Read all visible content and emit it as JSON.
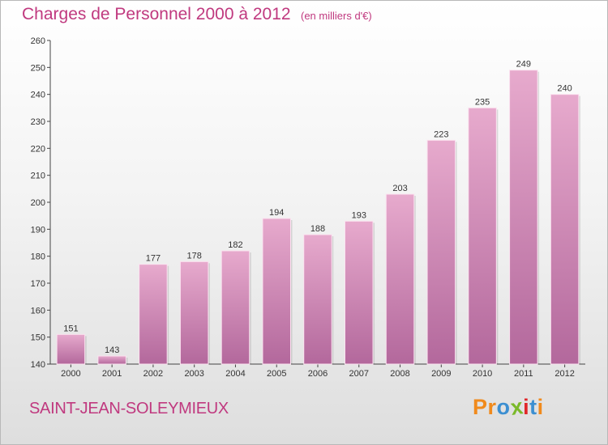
{
  "title": "Charges de Personnel 2000 à 2012",
  "unit": "(en milliers d'€)",
  "commune": "SAINT-JEAN-SOLEYMIEUX",
  "logo": {
    "letters": [
      "P",
      "r",
      "o",
      "x",
      "i",
      "t",
      "i"
    ],
    "colors": [
      "#f08a1c",
      "#f08a1c",
      "#3c8fd1",
      "#7ab929",
      "#e0272a",
      "#3c8fd1",
      "#f08a1c"
    ]
  },
  "colors": {
    "bar_top": "#e7aacd",
    "bar_bottom": "#b3689c",
    "text": "#c0397f"
  },
  "chart_data": {
    "type": "bar",
    "title": "Charges de Personnel 2000 à 2012",
    "xlabel": "",
    "ylabel": "(en milliers d'€)",
    "categories": [
      "2000",
      "2001",
      "2002",
      "2003",
      "2004",
      "2005",
      "2006",
      "2007",
      "2008",
      "2009",
      "2010",
      "2011",
      "2012"
    ],
    "values": [
      151,
      143,
      177,
      178,
      182,
      194,
      188,
      193,
      203,
      223,
      235,
      249,
      240
    ],
    "ylim": [
      140,
      260
    ],
    "yticks": [
      140,
      150,
      160,
      170,
      180,
      190,
      200,
      210,
      220,
      230,
      240,
      250,
      260
    ],
    "grid": false
  }
}
